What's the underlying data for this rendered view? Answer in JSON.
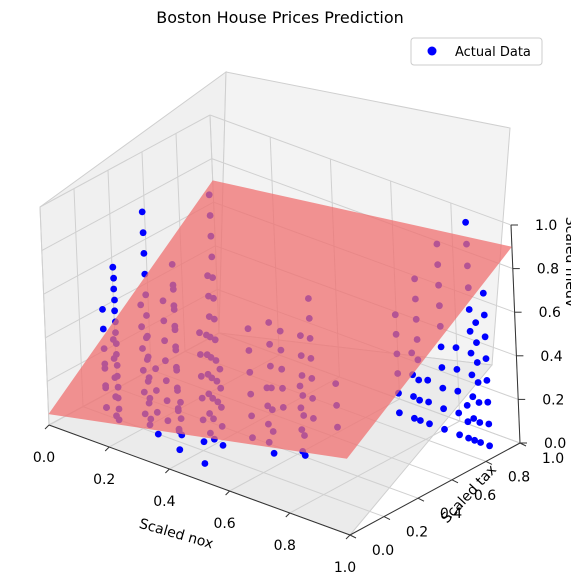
{
  "chart_data": {
    "type": "scatter",
    "projection": "3d",
    "title": "Boston House Prices Prediction",
    "xlabel": "Scaled nox",
    "ylabel": "Scaled tax",
    "zlabel": "Scaled medv",
    "xlim": [
      0,
      1
    ],
    "ylim": [
      0,
      1
    ],
    "zlim": [
      0,
      1
    ],
    "x_ticks": [
      "0.0",
      "0.2",
      "0.4",
      "0.6",
      "0.8",
      "1.0"
    ],
    "y_ticks": [
      "0.0",
      "0.2",
      "0.4",
      "0.6",
      "0.8",
      "1.0"
    ],
    "z_ticks": [
      "0.0",
      "0.2",
      "0.4",
      "0.6",
      "0.8",
      "1.0"
    ],
    "grid": true,
    "legend": {
      "position": "top-right",
      "entries": [
        "Actual Data"
      ]
    },
    "colors": {
      "points": "#0000ff",
      "plane": "#f07070",
      "overlap": "#7a0a8a",
      "pane": "#f2f2f2",
      "grid": "#d0d0d0"
    },
    "series": [
      {
        "name": "Actual Data",
        "kind": "scatter",
        "points_sample": [
          [
            0.05,
            0.25,
            0.2
          ],
          [
            0.05,
            0.25,
            0.45
          ],
          [
            0.08,
            0.27,
            0.6
          ],
          [
            0.1,
            0.22,
            0.35
          ],
          [
            0.12,
            0.2,
            0.7
          ],
          [
            0.15,
            0.3,
            0.5
          ],
          [
            0.18,
            0.28,
            0.95
          ],
          [
            0.2,
            0.24,
            0.4
          ],
          [
            0.22,
            0.31,
            0.55
          ],
          [
            0.25,
            0.2,
            0.3
          ],
          [
            0.28,
            0.27,
            0.65
          ],
          [
            0.3,
            0.25,
            0.15
          ],
          [
            0.35,
            0.33,
            0.45
          ],
          [
            0.38,
            0.3,
            0.75
          ],
          [
            0.42,
            0.28,
            0.35
          ],
          [
            0.45,
            0.4,
            0.5
          ],
          [
            0.5,
            0.41,
            0.25
          ],
          [
            0.55,
            0.35,
            0.6
          ],
          [
            0.6,
            0.43,
            0.3
          ],
          [
            0.62,
            0.41,
            0.55
          ],
          [
            0.65,
            0.91,
            0.45
          ],
          [
            0.7,
            0.91,
            0.3
          ],
          [
            0.72,
            0.91,
            0.65
          ],
          [
            0.75,
            0.91,
            0.2
          ],
          [
            0.8,
            0.91,
            0.85
          ],
          [
            0.85,
            0.91,
            0.4
          ],
          [
            0.88,
            0.91,
            0.15
          ],
          [
            0.9,
            0.91,
            1.0
          ],
          [
            0.92,
            0.91,
            0.55
          ],
          [
            0.95,
            0.91,
            0.7
          ],
          [
            0.4,
            0.67,
            0.35
          ],
          [
            0.5,
            0.67,
            0.55
          ],
          [
            0.58,
            0.67,
            0.2
          ],
          [
            0.35,
            0.15,
            0.85
          ],
          [
            0.45,
            0.12,
            0.6
          ],
          [
            0.25,
            0.55,
            0.95
          ]
        ]
      },
      {
        "name": "",
        "kind": "surface",
        "plane_corners": [
          [
            0,
            0,
            0.05
          ],
          [
            1,
            0,
            0.35
          ],
          [
            1,
            1,
            0.9
          ],
          [
            0,
            1,
            0.7
          ]
        ]
      }
    ]
  }
}
